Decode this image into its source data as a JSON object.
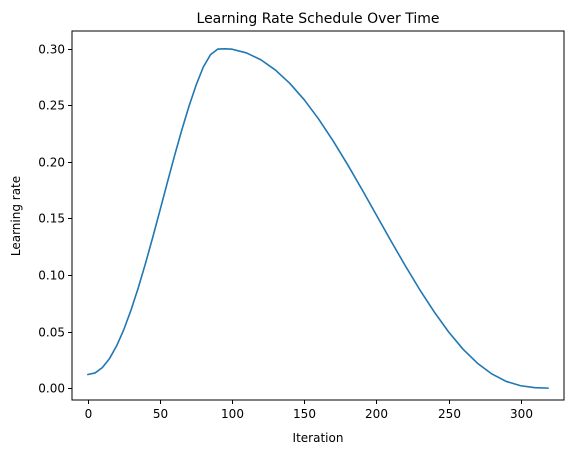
{
  "chart_data": {
    "type": "line",
    "title": "Learning Rate Schedule Over Time",
    "xlabel": "Iteration",
    "ylabel": "Learning rate",
    "xlim": [
      -11,
      330
    ],
    "ylim": [
      -0.0105,
      0.3155
    ],
    "xticks": [
      0,
      50,
      100,
      150,
      200,
      250,
      300
    ],
    "yticks": [
      0.0,
      0.05,
      0.1,
      0.15,
      0.2,
      0.25,
      0.3
    ],
    "ytick_labels": [
      "0.00",
      "0.05",
      "0.10",
      "0.15",
      "0.20",
      "0.25",
      "0.30"
    ],
    "grid": false,
    "series": [
      {
        "color": "#1f77b4",
        "x": [
          0,
          5,
          10,
          15,
          20,
          25,
          30,
          35,
          40,
          45,
          50,
          55,
          60,
          65,
          70,
          75,
          80,
          85,
          90,
          95,
          100,
          110,
          120,
          130,
          140,
          150,
          160,
          170,
          180,
          190,
          200,
          210,
          220,
          230,
          240,
          250,
          260,
          270,
          280,
          290,
          300,
          310,
          319
        ],
        "y": [
          0.012,
          0.0134,
          0.0181,
          0.0261,
          0.0375,
          0.052,
          0.0693,
          0.0889,
          0.1105,
          0.1334,
          0.1572,
          0.1813,
          0.205,
          0.2276,
          0.2487,
          0.2676,
          0.2837,
          0.2946,
          0.2995,
          0.2998,
          0.2994,
          0.2961,
          0.29,
          0.281,
          0.2692,
          0.2547,
          0.2376,
          0.2184,
          0.1975,
          0.1755,
          0.1528,
          0.1302,
          0.1081,
          0.087,
          0.0674,
          0.0497,
          0.0344,
          0.022,
          0.0125,
          0.0059,
          0.0021,
          0.0004,
          0.0
        ]
      }
    ]
  }
}
